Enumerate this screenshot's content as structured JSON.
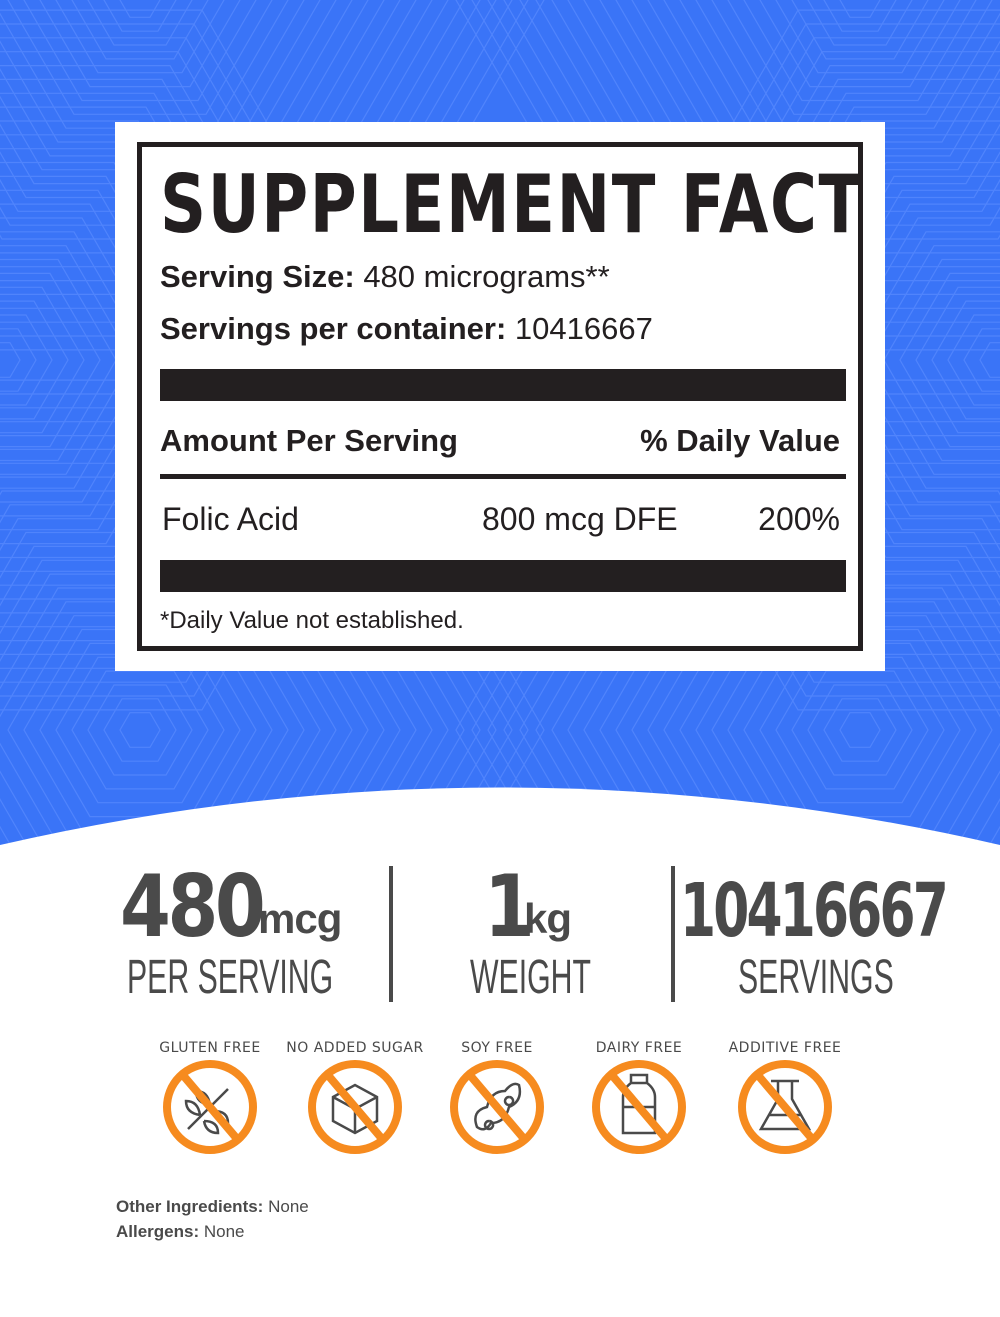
{
  "colors": {
    "background_blue": "#3a74f7",
    "text_dark": "#231f20",
    "stat_gray": "#4a4a4a",
    "badge_orange": "#f68b1f"
  },
  "facts": {
    "title": "SUPPLEMENT FACTS",
    "serving_size_label": "Serving Size:",
    "serving_size_value": "480 micrograms**",
    "servings_label": "Servings per container:",
    "servings_value": "10416667",
    "amount_header": "Amount Per Serving",
    "dv_header": "% Daily Value",
    "rows": [
      {
        "name": "Folic Acid",
        "amount": "800 mcg DFE",
        "dv": "200%"
      }
    ],
    "footnote": "*Daily Value not established."
  },
  "stats": [
    {
      "value": "480",
      "unit": "mcg",
      "label": "PER SERVING"
    },
    {
      "value": "1",
      "unit": "kg",
      "label": "WEIGHT"
    },
    {
      "value": "10416667",
      "unit": "",
      "label": "SERVINGS"
    }
  ],
  "badges": [
    {
      "label": "GLUTEN FREE",
      "icon": "wheat-icon"
    },
    {
      "label": "NO ADDED SUGAR",
      "icon": "sugar-cube-icon"
    },
    {
      "label": "SOY FREE",
      "icon": "soybean-icon"
    },
    {
      "label": "DAIRY FREE",
      "icon": "milk-bottle-icon"
    },
    {
      "label": "ADDITIVE FREE",
      "icon": "flask-icon"
    }
  ],
  "footer": {
    "other_label": "Other Ingredients:",
    "other_value": " None",
    "allergens_label": "Allergens:",
    "allergens_value": " None"
  }
}
